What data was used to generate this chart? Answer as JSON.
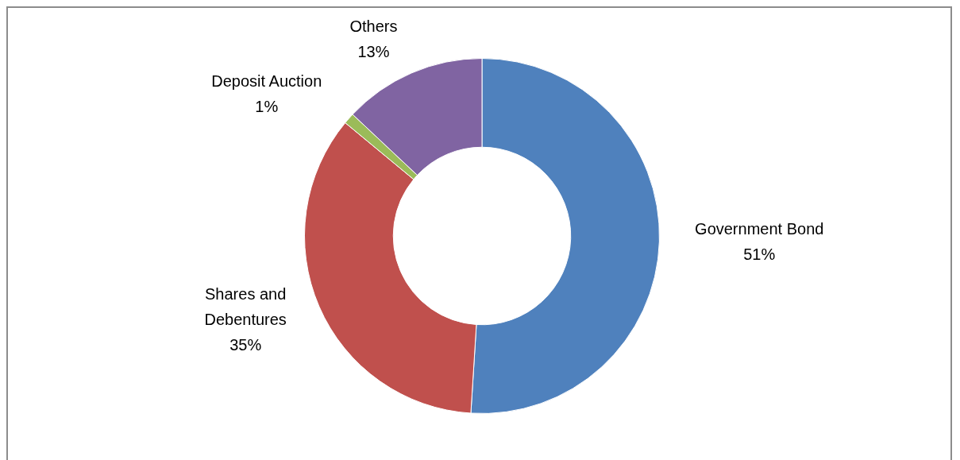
{
  "chart_data": {
    "type": "donut",
    "categories": [
      "Government Bond",
      "Shares and Debentures",
      "Deposit Auction",
      "Others"
    ],
    "values": [
      51,
      35,
      1,
      13
    ],
    "value_labels": [
      "51%",
      "35%",
      "1%",
      "13%"
    ],
    "colors": [
      "#4f81bd",
      "#c0504d",
      "#9bbb59",
      "#8064a2"
    ],
    "legend": false
  }
}
